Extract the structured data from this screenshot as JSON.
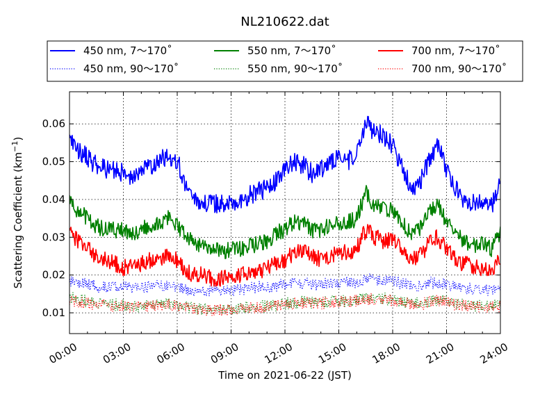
{
  "chart_data": {
    "type": "line",
    "title": "NL210622.dat",
    "xlabel": "Time on 2021-06-22 (JST)",
    "ylabel_main": "Scattering Coefficient (km",
    "ylabel_sup": "−1",
    "ylabel_end": ")",
    "xlim": [
      "00:00",
      "24:00"
    ],
    "ylim": [
      0.0045,
      0.0685
    ],
    "grid": true,
    "legend_position": "top",
    "x_ticks": [
      "00:00",
      "03:00",
      "06:00",
      "09:00",
      "12:00",
      "15:00",
      "18:00",
      "21:00",
      "24:00"
    ],
    "y_ticks": [
      {
        "value": 0.01,
        "label": "0.01"
      },
      {
        "value": 0.02,
        "label": "0.02"
      },
      {
        "value": 0.03,
        "label": "0.03"
      },
      {
        "value": 0.04,
        "label": "0.04"
      },
      {
        "value": 0.05,
        "label": "0.05"
      },
      {
        "value": 0.06,
        "label": "0.06"
      }
    ],
    "x_hours": [
      0,
      0.5,
      1,
      1.5,
      2,
      2.5,
      3,
      3.5,
      4,
      4.5,
      5,
      5.5,
      6,
      6.5,
      7,
      7.5,
      8,
      8.5,
      9,
      9.5,
      10,
      10.5,
      11,
      11.5,
      12,
      12.5,
      13,
      13.5,
      14,
      14.5,
      15,
      15.5,
      16,
      16.5,
      17,
      17.5,
      18,
      18.5,
      19,
      19.5,
      20,
      20.5,
      21,
      21.5,
      22,
      22.5,
      23,
      23.5,
      24
    ],
    "series": [
      {
        "name": "450 nm, 7～170˚",
        "color": "#0000ff",
        "dash": "solid",
        "values": [
          0.055,
          0.053,
          0.051,
          0.049,
          0.048,
          0.048,
          0.047,
          0.046,
          0.047,
          0.049,
          0.05,
          0.052,
          0.05,
          0.044,
          0.04,
          0.039,
          0.039,
          0.039,
          0.039,
          0.04,
          0.041,
          0.042,
          0.043,
          0.045,
          0.048,
          0.05,
          0.049,
          0.047,
          0.048,
          0.05,
          0.051,
          0.05,
          0.053,
          0.06,
          0.058,
          0.057,
          0.054,
          0.049,
          0.043,
          0.044,
          0.05,
          0.055,
          0.048,
          0.043,
          0.04,
          0.039,
          0.039,
          0.038,
          0.045
        ]
      },
      {
        "name": "450 nm, 90～170˚",
        "color": "#0000ff",
        "dash": "dotted",
        "values": [
          0.0185,
          0.018,
          0.0175,
          0.017,
          0.017,
          0.017,
          0.0168,
          0.0165,
          0.0165,
          0.017,
          0.0172,
          0.0175,
          0.017,
          0.016,
          0.0155,
          0.0155,
          0.0158,
          0.0158,
          0.016,
          0.0162,
          0.0165,
          0.0168,
          0.0168,
          0.017,
          0.0175,
          0.0178,
          0.0177,
          0.0175,
          0.0175,
          0.0178,
          0.018,
          0.018,
          0.0182,
          0.019,
          0.0188,
          0.0188,
          0.0185,
          0.0178,
          0.0172,
          0.0172,
          0.0178,
          0.018,
          0.0175,
          0.017,
          0.0165,
          0.0162,
          0.016,
          0.0158,
          0.016
        ]
      },
      {
        "name": "550 nm, 7～170˚",
        "color": "#008000",
        "dash": "solid",
        "values": [
          0.039,
          0.037,
          0.035,
          0.033,
          0.032,
          0.032,
          0.032,
          0.031,
          0.032,
          0.033,
          0.034,
          0.035,
          0.033,
          0.03,
          0.028,
          0.027,
          0.027,
          0.026,
          0.027,
          0.027,
          0.028,
          0.028,
          0.029,
          0.031,
          0.032,
          0.034,
          0.034,
          0.032,
          0.032,
          0.033,
          0.034,
          0.034,
          0.035,
          0.042,
          0.038,
          0.038,
          0.037,
          0.034,
          0.031,
          0.032,
          0.036,
          0.039,
          0.034,
          0.031,
          0.029,
          0.028,
          0.028,
          0.027,
          0.031
        ]
      },
      {
        "name": "550 nm, 90～170˚",
        "color": "#008000",
        "dash": "dotted",
        "values": [
          0.014,
          0.0135,
          0.013,
          0.0125,
          0.0122,
          0.0122,
          0.012,
          0.0118,
          0.0118,
          0.012,
          0.0122,
          0.0125,
          0.012,
          0.0115,
          0.0112,
          0.011,
          0.011,
          0.011,
          0.011,
          0.0112,
          0.0115,
          0.0115,
          0.0118,
          0.012,
          0.0125,
          0.0128,
          0.013,
          0.0128,
          0.0128,
          0.013,
          0.0132,
          0.0132,
          0.0135,
          0.014,
          0.0138,
          0.0138,
          0.0135,
          0.013,
          0.0125,
          0.0125,
          0.013,
          0.0135,
          0.013,
          0.0125,
          0.0122,
          0.012,
          0.012,
          0.0118,
          0.012
        ]
      },
      {
        "name": "700 nm, 7～170˚",
        "color": "#ff0000",
        "dash": "solid",
        "values": [
          0.031,
          0.029,
          0.027,
          0.025,
          0.024,
          0.023,
          0.022,
          0.022,
          0.023,
          0.024,
          0.024,
          0.025,
          0.024,
          0.021,
          0.02,
          0.02,
          0.019,
          0.019,
          0.02,
          0.02,
          0.021,
          0.021,
          0.022,
          0.023,
          0.024,
          0.026,
          0.026,
          0.025,
          0.024,
          0.025,
          0.026,
          0.026,
          0.027,
          0.032,
          0.03,
          0.029,
          0.029,
          0.027,
          0.024,
          0.025,
          0.028,
          0.03,
          0.027,
          0.024,
          0.023,
          0.022,
          0.022,
          0.021,
          0.025
        ]
      },
      {
        "name": "700 nm, 90～170˚",
        "color": "#ff0000",
        "dash": "dotted",
        "values": [
          0.0135,
          0.013,
          0.0125,
          0.0122,
          0.012,
          0.012,
          0.0118,
          0.0115,
          0.0115,
          0.0118,
          0.012,
          0.0122,
          0.0118,
          0.0112,
          0.0108,
          0.0108,
          0.0108,
          0.0108,
          0.0108,
          0.011,
          0.0112,
          0.0112,
          0.0115,
          0.0118,
          0.0122,
          0.0125,
          0.0128,
          0.0125,
          0.0125,
          0.0128,
          0.013,
          0.013,
          0.0132,
          0.0138,
          0.0135,
          0.0135,
          0.0132,
          0.0128,
          0.0122,
          0.0122,
          0.0128,
          0.0132,
          0.0128,
          0.0122,
          0.012,
          0.0118,
          0.0118,
          0.0115,
          0.0118
        ]
      }
    ]
  }
}
